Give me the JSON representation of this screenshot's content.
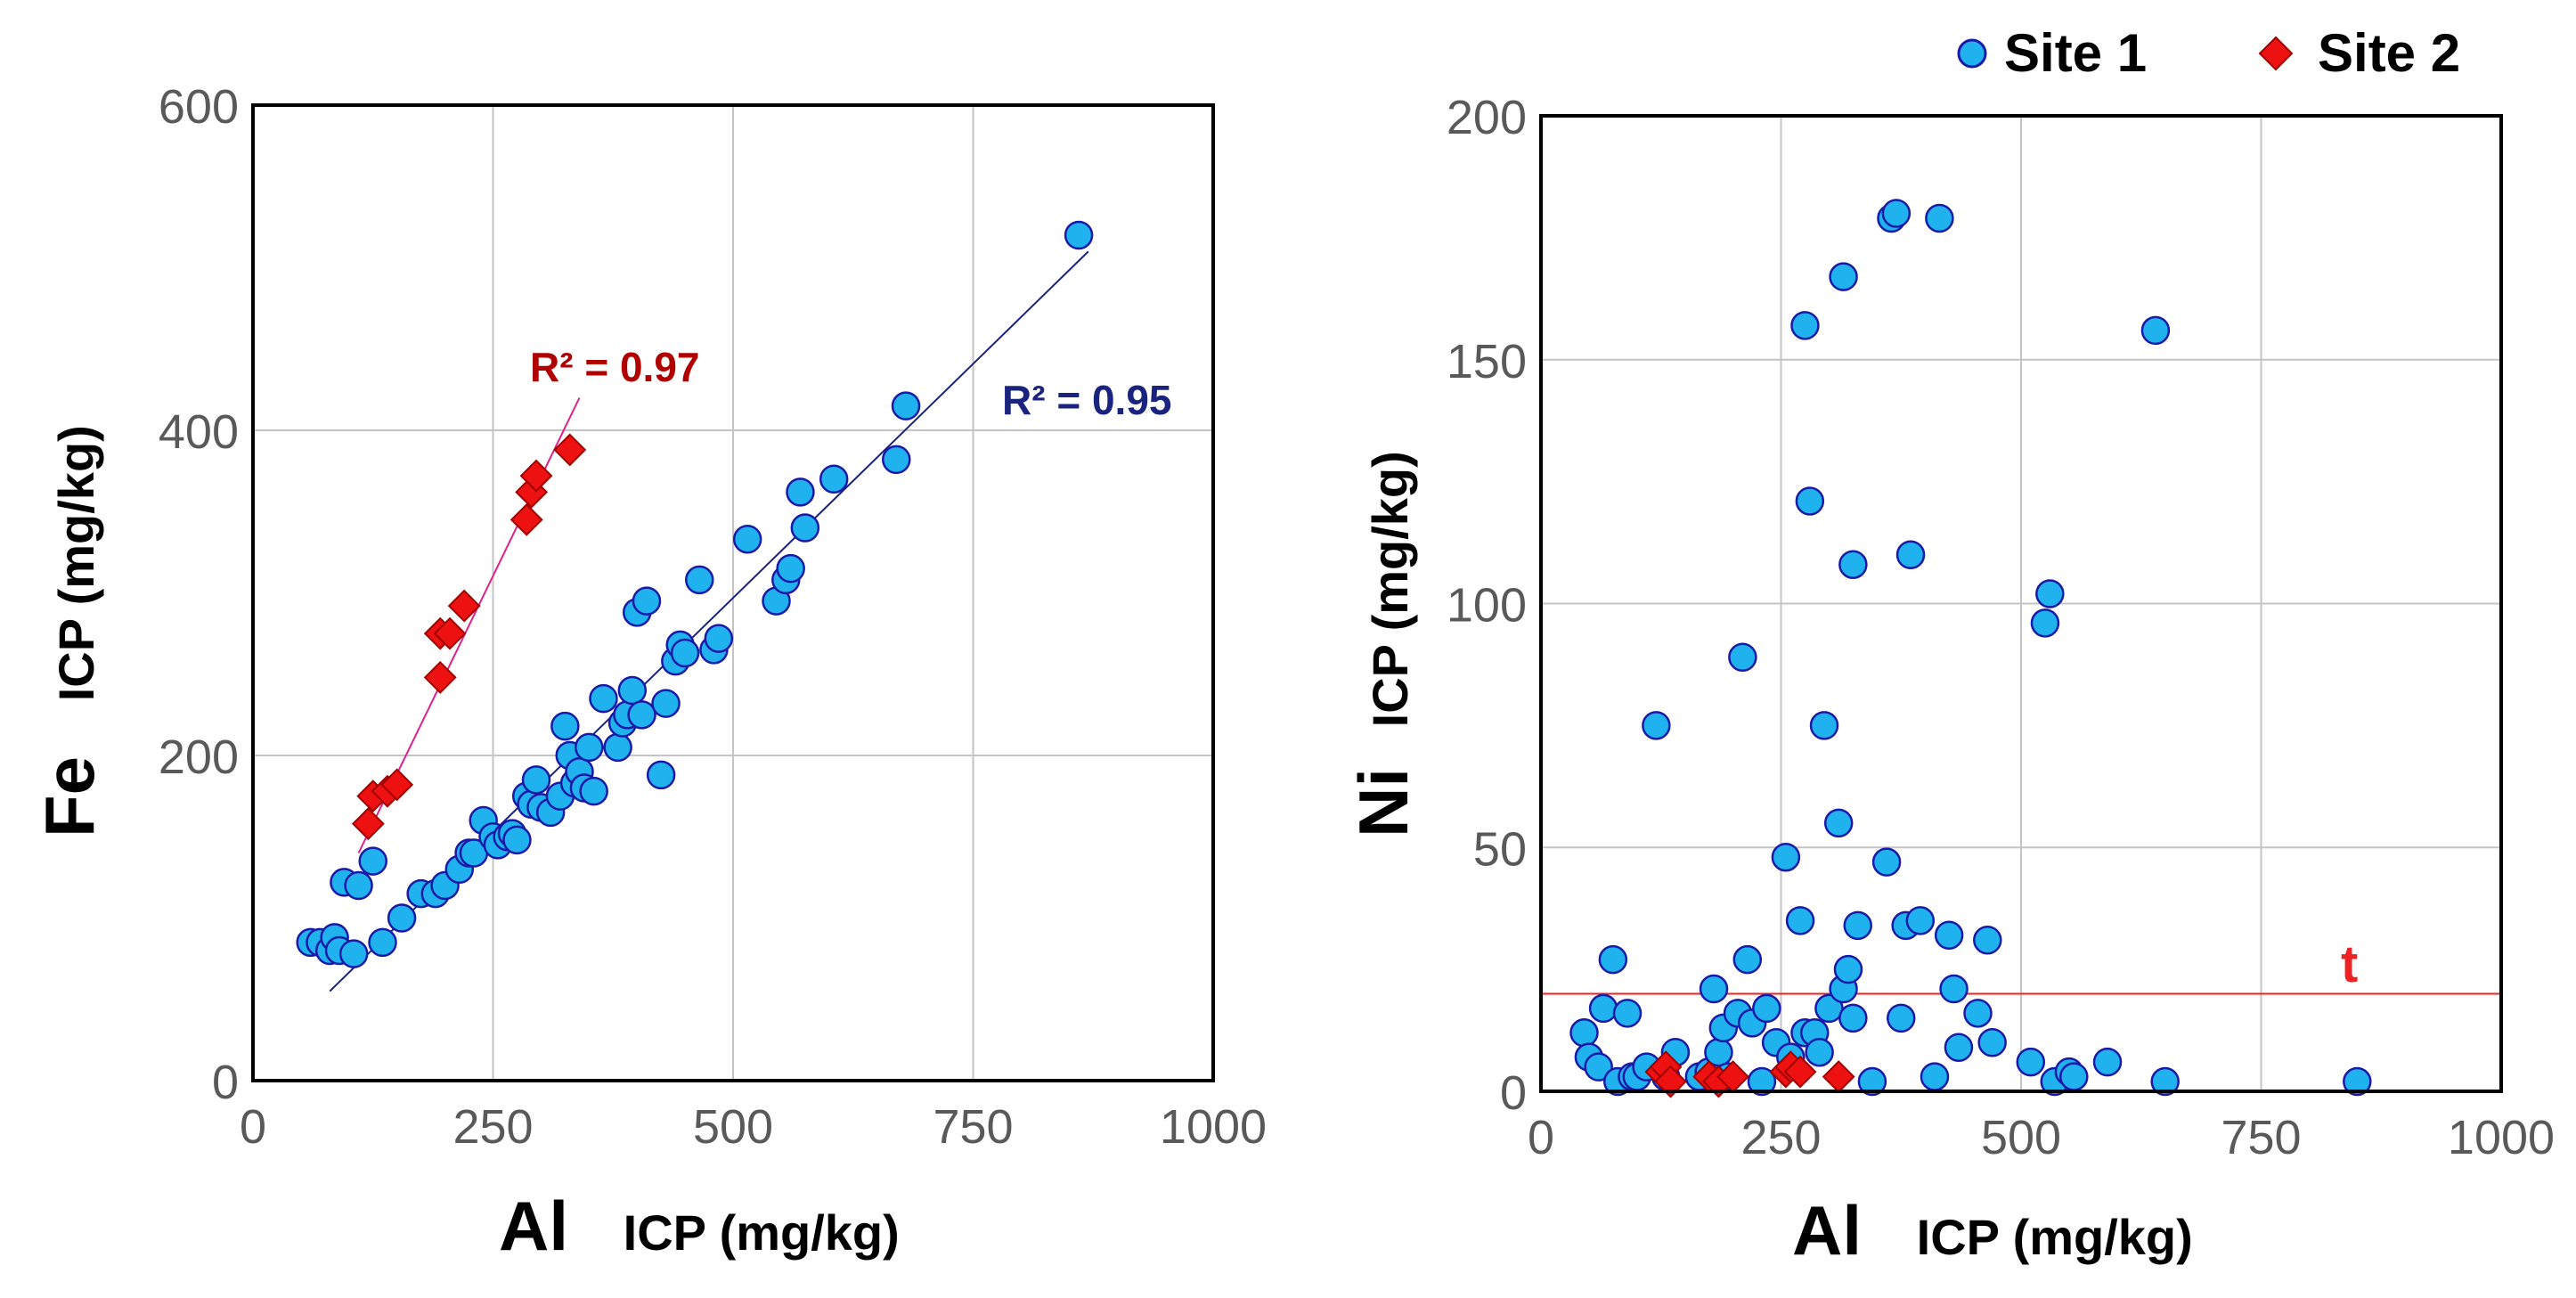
{
  "colors": {
    "site1_fill": "#1fb2ee",
    "site1_stroke": "#1a1aa8",
    "site2_fill": "#ee1111",
    "site2_stroke": "#a00000",
    "fit_site1": "#1a237e",
    "fit_site2": "#e0208c",
    "r2_site1": "#1a237e",
    "r2_site2": "#b00000",
    "threshold": "#ee2222",
    "grid": "#c4c4c4",
    "tick_text": "#595959"
  },
  "legend": {
    "site1": "Site 1",
    "site2": "Site 2"
  },
  "chart_data": [
    {
      "type": "scatter",
      "name": "Fe vs Al",
      "xlabel_main": "Al",
      "xlabel_sub": "ICP (mg/kg)",
      "ylabel_main": "Fe",
      "ylabel_sub": "ICP (mg/kg)",
      "xlim": [
        0,
        1000
      ],
      "ylim": [
        0,
        600
      ],
      "xticks": [
        0,
        250,
        500,
        750,
        1000
      ],
      "yticks": [
        0,
        200,
        400,
        600
      ],
      "grid": true,
      "series": [
        {
          "name": "Site 1",
          "marker": "circle",
          "points": [
            [
              60,
              85
            ],
            [
              70,
              85
            ],
            [
              80,
              80
            ],
            [
              85,
              88
            ],
            [
              90,
              80
            ],
            [
              105,
              78
            ],
            [
              95,
              122
            ],
            [
              110,
              120
            ],
            [
              125,
              135
            ],
            [
              135,
              85
            ],
            [
              155,
              100
            ],
            [
              175,
              115
            ],
            [
              190,
              115
            ],
            [
              200,
              120
            ],
            [
              215,
              130
            ],
            [
              225,
              140
            ],
            [
              230,
              140
            ],
            [
              240,
              160
            ],
            [
              250,
              150
            ],
            [
              255,
              145
            ],
            [
              265,
              150
            ],
            [
              270,
              152
            ],
            [
              275,
              148
            ],
            [
              285,
              175
            ],
            [
              290,
              170
            ],
            [
              295,
              185
            ],
            [
              300,
              168
            ],
            [
              310,
              165
            ],
            [
              320,
              175
            ],
            [
              325,
              218
            ],
            [
              330,
              200
            ],
            [
              335,
              183
            ],
            [
              340,
              190
            ],
            [
              345,
              180
            ],
            [
              350,
              205
            ],
            [
              355,
              178
            ],
            [
              365,
              235
            ],
            [
              380,
              205
            ],
            [
              385,
              220
            ],
            [
              390,
              225
            ],
            [
              395,
              240
            ],
            [
              400,
              288
            ],
            [
              405,
              225
            ],
            [
              410,
              295
            ],
            [
              425,
              188
            ],
            [
              430,
              232
            ],
            [
              440,
              258
            ],
            [
              445,
              268
            ],
            [
              450,
              263
            ],
            [
              465,
              308
            ],
            [
              480,
              265
            ],
            [
              485,
              272
            ],
            [
              515,
              333
            ],
            [
              545,
              295
            ],
            [
              555,
              308
            ],
            [
              560,
              315
            ],
            [
              570,
              362
            ],
            [
              575,
              340
            ],
            [
              605,
              370
            ],
            [
              670,
              382
            ],
            [
              680,
              415
            ],
            [
              860,
              520
            ]
          ],
          "fit": {
            "x": [
              80,
              870
            ],
            "y": [
              55,
              510
            ],
            "r2_label": "R² = 0.95"
          }
        },
        {
          "name": "Site 2",
          "marker": "diamond",
          "points": [
            [
              120,
              158
            ],
            [
              125,
              175
            ],
            [
              140,
              178
            ],
            [
              150,
              182
            ],
            [
              195,
              248
            ],
            [
              195,
              275
            ],
            [
              205,
              275
            ],
            [
              220,
              292
            ],
            [
              285,
              345
            ],
            [
              290,
              362
            ],
            [
              295,
              372
            ],
            [
              330,
              388
            ]
          ],
          "fit": {
            "x": [
              110,
              340
            ],
            "y": [
              140,
              420
            ],
            "r2_label": "R² = 0.97"
          }
        }
      ]
    },
    {
      "type": "scatter",
      "name": "Ni vs Al",
      "xlabel_main": "Al",
      "xlabel_sub": "ICP (mg/kg)",
      "ylabel_main": "Ni",
      "ylabel_sub": "ICP (mg/kg)",
      "xlim": [
        0,
        1000
      ],
      "ylim": [
        0,
        200
      ],
      "xticks": [
        0,
        250,
        500,
        750,
        1000
      ],
      "yticks": [
        0,
        50,
        100,
        150,
        200
      ],
      "grid": true,
      "threshold": {
        "y": 20,
        "label": "t"
      },
      "series": [
        {
          "name": "Site 1",
          "marker": "circle",
          "points": [
            [
              45,
              12
            ],
            [
              50,
              7
            ],
            [
              60,
              5
            ],
            [
              65,
              17
            ],
            [
              75,
              27
            ],
            [
              80,
              2
            ],
            [
              90,
              16
            ],
            [
              95,
              3
            ],
            [
              100,
              3
            ],
            [
              110,
              5
            ],
            [
              120,
              75
            ],
            [
              130,
              3
            ],
            [
              140,
              8
            ],
            [
              165,
              3
            ],
            [
              175,
              4
            ],
            [
              180,
              21
            ],
            [
              185,
              8
            ],
            [
              190,
              13
            ],
            [
              195,
              3
            ],
            [
              205,
              16
            ],
            [
              210,
              89
            ],
            [
              215,
              27
            ],
            [
              220,
              14
            ],
            [
              230,
              2
            ],
            [
              235,
              17
            ],
            [
              245,
              10
            ],
            [
              255,
              48
            ],
            [
              260,
              7
            ],
            [
              270,
              35
            ],
            [
              275,
              12
            ],
            [
              275,
              157
            ],
            [
              280,
              121
            ],
            [
              285,
              12
            ],
            [
              290,
              8
            ],
            [
              295,
              75
            ],
            [
              300,
              17
            ],
            [
              310,
              55
            ],
            [
              315,
              167
            ],
            [
              315,
              21
            ],
            [
              320,
              25
            ],
            [
              325,
              15
            ],
            [
              325,
              108
            ],
            [
              330,
              34
            ],
            [
              345,
              2
            ],
            [
              360,
              47
            ],
            [
              365,
              179
            ],
            [
              370,
              180
            ],
            [
              375,
              15
            ],
            [
              380,
              34
            ],
            [
              385,
              110
            ],
            [
              395,
              35
            ],
            [
              410,
              3
            ],
            [
              415,
              179
            ],
            [
              425,
              32
            ],
            [
              430,
              21
            ],
            [
              435,
              9
            ],
            [
              455,
              16
            ],
            [
              465,
              31
            ],
            [
              470,
              10
            ],
            [
              510,
              6
            ],
            [
              525,
              96
            ],
            [
              530,
              102
            ],
            [
              535,
              2
            ],
            [
              550,
              4
            ],
            [
              555,
              3
            ],
            [
              590,
              6
            ],
            [
              640,
              156
            ],
            [
              650,
              2
            ],
            [
              850,
              2
            ]
          ]
        },
        {
          "name": "Site 2",
          "marker": "diamond",
          "points": [
            [
              125,
              4
            ],
            [
              130,
              5
            ],
            [
              135,
              2
            ],
            [
              175,
              3
            ],
            [
              185,
              2
            ],
            [
              200,
              3
            ],
            [
              255,
              4
            ],
            [
              260,
              5
            ],
            [
              270,
              4
            ],
            [
              310,
              3
            ]
          ]
        }
      ]
    }
  ]
}
